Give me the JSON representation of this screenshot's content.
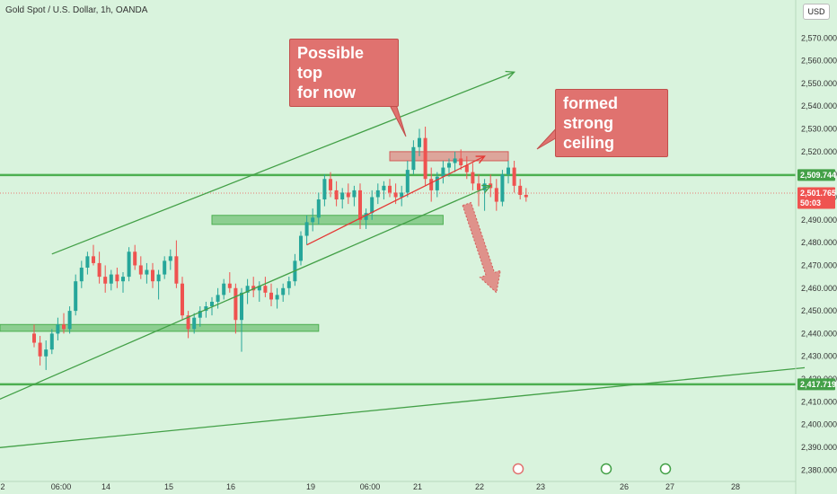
{
  "header": {
    "title": "Gold Spot / U.S. Dollar, 1h, OANDA",
    "currency": "USD"
  },
  "annotations": {
    "top": "Possible top\nfor now",
    "ceiling": "formed strong\nceiling"
  },
  "tags": {
    "level_1": "2,509.744",
    "current_price": "2,501.765",
    "countdown": "50:03",
    "level_2": "2,417.719"
  },
  "colors": {
    "bg": "#d9f3dd",
    "up": "#26a69a",
    "down": "#ef5350",
    "line": "#4caf50",
    "zone": "#4caf50",
    "red": "#e0726f"
  },
  "chart_data": {
    "type": "candlestick",
    "title": "Gold Spot / U.S. Dollar, 1h, OANDA",
    "ylim": [
      2375,
      2578
    ],
    "y_ticks": [
      2380,
      2390,
      2400,
      2410,
      2420,
      2430,
      2440,
      2450,
      2460,
      2470,
      2480,
      2490,
      2500,
      2510,
      2520,
      2530,
      2540,
      2550,
      2560,
      2570
    ],
    "y_tick_labels": [
      "2,380.000",
      "2,390.000",
      "2,400.000",
      "2,410.000",
      "2,420.000",
      "2,430.000",
      "2,440.000",
      "2,450.000",
      "2,460.000",
      "2,470.000",
      "2,480.000",
      "2,490.000",
      "2,500.000",
      "2,510.000",
      "2,520.000",
      "2,530.000",
      "2,540.000",
      "2,550.000",
      "2,560.000",
      "2,570.000"
    ],
    "x_tick_labels": [
      "2",
      "06:00",
      "14",
      "15",
      "16",
      "19",
      "06:00",
      "21",
      "22",
      "23",
      "26",
      "27",
      "28"
    ],
    "horizontal_levels": [
      2509.744,
      2417.719
    ],
    "current_price": 2501.765,
    "candles": [
      [
        2440,
        2444,
        2434,
        2436
      ],
      [
        2436,
        2439,
        2426,
        2430
      ],
      [
        2430,
        2437,
        2424,
        2433
      ],
      [
        2433,
        2442,
        2431,
        2440
      ],
      [
        2440,
        2447,
        2437,
        2444
      ],
      [
        2444,
        2449,
        2440,
        2442
      ],
      [
        2442,
        2452,
        2440,
        2450
      ],
      [
        2450,
        2466,
        2448,
        2463
      ],
      [
        2463,
        2472,
        2460,
        2469
      ],
      [
        2469,
        2476,
        2466,
        2474
      ],
      [
        2474,
        2479,
        2470,
        2471
      ],
      [
        2471,
        2476,
        2462,
        2465
      ],
      [
        2465,
        2470,
        2458,
        2462
      ],
      [
        2462,
        2468,
        2459,
        2466
      ],
      [
        2466,
        2469,
        2460,
        2463
      ],
      [
        2463,
        2467,
        2458,
        2465
      ],
      [
        2465,
        2478,
        2463,
        2476
      ],
      [
        2476,
        2479,
        2468,
        2470
      ],
      [
        2470,
        2474,
        2464,
        2466
      ],
      [
        2466,
        2471,
        2462,
        2468
      ],
      [
        2468,
        2471,
        2460,
        2463
      ],
      [
        2463,
        2468,
        2455,
        2466
      ],
      [
        2466,
        2474,
        2464,
        2472
      ],
      [
        2472,
        2477,
        2468,
        2474
      ],
      [
        2474,
        2481,
        2460,
        2462
      ],
      [
        2462,
        2465,
        2446,
        2448
      ],
      [
        2448,
        2450,
        2438,
        2442
      ],
      [
        2442,
        2449,
        2440,
        2447
      ],
      [
        2447,
        2452,
        2443,
        2450
      ],
      [
        2450,
        2454,
        2447,
        2452
      ],
      [
        2452,
        2456,
        2448,
        2454
      ],
      [
        2454,
        2460,
        2451,
        2457
      ],
      [
        2457,
        2464,
        2455,
        2462
      ],
      [
        2462,
        2467,
        2458,
        2460
      ],
      [
        2460,
        2462,
        2440,
        2446
      ],
      [
        2446,
        2460,
        2432,
        2458
      ],
      [
        2458,
        2464,
        2453,
        2461
      ],
      [
        2461,
        2465,
        2456,
        2459
      ],
      [
        2459,
        2463,
        2454,
        2461
      ],
      [
        2461,
        2465,
        2456,
        2458
      ],
      [
        2458,
        2462,
        2452,
        2455
      ],
      [
        2455,
        2460,
        2451,
        2457
      ],
      [
        2457,
        2462,
        2454,
        2460
      ],
      [
        2460,
        2465,
        2457,
        2463
      ],
      [
        2463,
        2475,
        2461,
        2472
      ],
      [
        2472,
        2485,
        2470,
        2483
      ],
      [
        2483,
        2492,
        2479,
        2489
      ],
      [
        2489,
        2495,
        2485,
        2491
      ],
      [
        2491,
        2502,
        2488,
        2499
      ],
      [
        2499,
        2510,
        2496,
        2508
      ],
      [
        2508,
        2511,
        2500,
        2503
      ],
      [
        2503,
        2507,
        2496,
        2499
      ],
      [
        2499,
        2504,
        2495,
        2502
      ],
      [
        2502,
        2506,
        2497,
        2500
      ],
      [
        2500,
        2505,
        2496,
        2503
      ],
      [
        2503,
        2506,
        2486,
        2490
      ],
      [
        2490,
        2495,
        2486,
        2493
      ],
      [
        2493,
        2503,
        2490,
        2500
      ],
      [
        2500,
        2506,
        2497,
        2503
      ],
      [
        2503,
        2507,
        2499,
        2505
      ],
      [
        2505,
        2508,
        2500,
        2502
      ],
      [
        2502,
        2506,
        2497,
        2500
      ],
      [
        2500,
        2505,
        2496,
        2502
      ],
      [
        2502,
        2516,
        2500,
        2512
      ],
      [
        2512,
        2525,
        2510,
        2522
      ],
      [
        2522,
        2530,
        2518,
        2526
      ],
      [
        2526,
        2531,
        2505,
        2508
      ],
      [
        2508,
        2513,
        2498,
        2503
      ],
      [
        2503,
        2511,
        2500,
        2509
      ],
      [
        2509,
        2516,
        2506,
        2513
      ],
      [
        2513,
        2517,
        2509,
        2515
      ],
      [
        2515,
        2520,
        2511,
        2517
      ],
      [
        2517,
        2521,
        2512,
        2514
      ],
      [
        2514,
        2518,
        2508,
        2511
      ],
      [
        2511,
        2515,
        2503,
        2506
      ],
      [
        2506,
        2510,
        2496,
        2503
      ],
      [
        2503,
        2508,
        2494,
        2506
      ],
      [
        2506,
        2510,
        2500,
        2504
      ],
      [
        2504,
        2508,
        2494,
        2498
      ],
      [
        2498,
        2512,
        2496,
        2510
      ],
      [
        2510,
        2516,
        2506,
        2513
      ],
      [
        2513,
        2516,
        2502,
        2505
      ],
      [
        2505,
        2508,
        2499,
        2501
      ],
      [
        2501,
        2504,
        2498,
        2500
      ]
    ],
    "trend_lines": [
      {
        "color": "green",
        "from": [
          3,
          2475
        ],
        "to": [
          81,
          2555
        ],
        "arrow": true
      },
      {
        "color": "green",
        "from": [
          -13,
          2403
        ],
        "to": [
          77,
          2505
        ],
        "arrow": true
      },
      {
        "color": "green",
        "from": [
          -13,
          2388
        ],
        "to": [
          130,
          2425
        ],
        "arrow": false
      },
      {
        "color": "red",
        "from": [
          46,
          2479
        ],
        "to": [
          76,
          2518
        ],
        "arrow": true
      }
    ],
    "zones": [
      {
        "color": "green",
        "x": [
          -13,
          48
        ],
        "y": [
          2441,
          2444
        ]
      },
      {
        "color": "green",
        "x": [
          30,
          69
        ],
        "y": [
          2488,
          2492
        ]
      },
      {
        "color": "red",
        "x": [
          60,
          80
        ],
        "y": [
          2516,
          2520
        ]
      }
    ],
    "projection_arrow": {
      "from": [
        73,
        2497
      ],
      "to": [
        78,
        2458
      ]
    }
  }
}
